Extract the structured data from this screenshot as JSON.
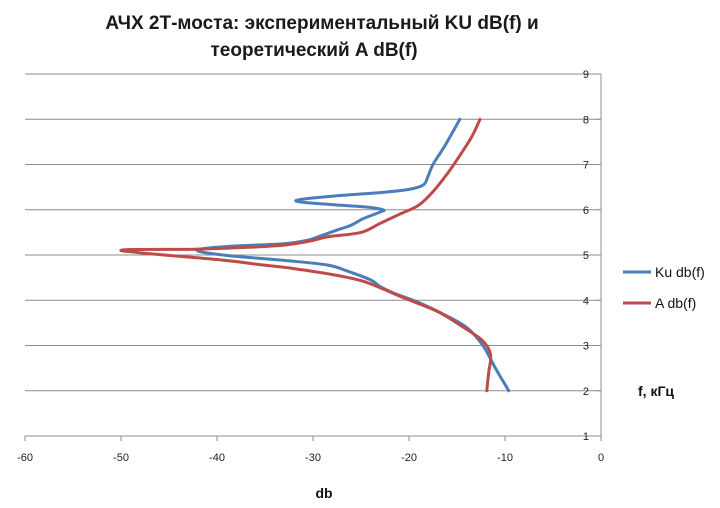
{
  "chart_data": {
    "type": "line",
    "title_lines": [
      "АЧХ 2Т-моста: экспериментальный KU dB(f) и",
      "теоретический A dB(f)"
    ],
    "xlabel": "db",
    "ylabel": "f, кГц",
    "xlim": [
      -60,
      0
    ],
    "ylim": [
      1,
      9
    ],
    "x_ticks": [
      -60,
      -50,
      -40,
      -30,
      -20,
      -10,
      0
    ],
    "y_ticks": [
      1,
      2,
      3,
      4,
      5,
      6,
      7,
      8,
      9
    ],
    "grid": "horizontal",
    "legend_position": "right",
    "series": [
      {
        "name": "Ku db(f)",
        "color": "#4a7ebb",
        "points": [
          [
            -9.6,
            2.0
          ],
          [
            -11.0,
            2.5
          ],
          [
            -12.3,
            3.0
          ],
          [
            -14.0,
            3.4
          ],
          [
            -16.5,
            3.7
          ],
          [
            -19.0,
            3.95
          ],
          [
            -21.5,
            4.15
          ],
          [
            -23.0,
            4.3
          ],
          [
            -24.0,
            4.45
          ],
          [
            -26.5,
            4.65
          ],
          [
            -28.5,
            4.78
          ],
          [
            -33.0,
            4.88
          ],
          [
            -38.0,
            4.97
          ],
          [
            -40.5,
            5.03
          ],
          [
            -42.0,
            5.09
          ],
          [
            -41.5,
            5.14
          ],
          [
            -38.0,
            5.2
          ],
          [
            -33.0,
            5.25
          ],
          [
            -30.5,
            5.33
          ],
          [
            -29.5,
            5.4
          ],
          [
            -27.5,
            5.55
          ],
          [
            -26.0,
            5.66
          ],
          [
            -24.8,
            5.8
          ],
          [
            -23.0,
            5.95
          ],
          [
            -22.7,
            6.0
          ],
          [
            -24.5,
            6.06
          ],
          [
            -28.5,
            6.12
          ],
          [
            -31.8,
            6.2
          ],
          [
            -28.0,
            6.3
          ],
          [
            -23.0,
            6.38
          ],
          [
            -20.0,
            6.45
          ],
          [
            -18.5,
            6.55
          ],
          [
            -18.0,
            6.75
          ],
          [
            -17.5,
            7.0
          ],
          [
            -16.3,
            7.4
          ],
          [
            -14.7,
            8.0
          ]
        ]
      },
      {
        "name": "A db(f)",
        "color": "#be4b48",
        "points": [
          [
            -11.9,
            2.0
          ],
          [
            -11.7,
            2.4
          ],
          [
            -11.5,
            2.8
          ],
          [
            -12.3,
            3.1
          ],
          [
            -14.3,
            3.4
          ],
          [
            -17.0,
            3.75
          ],
          [
            -20.5,
            4.05
          ],
          [
            -24.5,
            4.4
          ],
          [
            -27.5,
            4.55
          ],
          [
            -32.0,
            4.7
          ],
          [
            -36.0,
            4.8
          ],
          [
            -40.0,
            4.9
          ],
          [
            -50.0,
            5.1
          ],
          [
            -42.0,
            5.13
          ],
          [
            -34.0,
            5.2
          ],
          [
            -30.5,
            5.3
          ],
          [
            -28.5,
            5.4
          ],
          [
            -25.0,
            5.5
          ],
          [
            -23.0,
            5.7
          ],
          [
            -21.0,
            5.9
          ],
          [
            -19.0,
            6.1
          ],
          [
            -17.5,
            6.4
          ],
          [
            -16.0,
            6.8
          ],
          [
            -14.7,
            7.2
          ],
          [
            -13.5,
            7.6
          ],
          [
            -12.6,
            8.0
          ]
        ]
      }
    ]
  }
}
